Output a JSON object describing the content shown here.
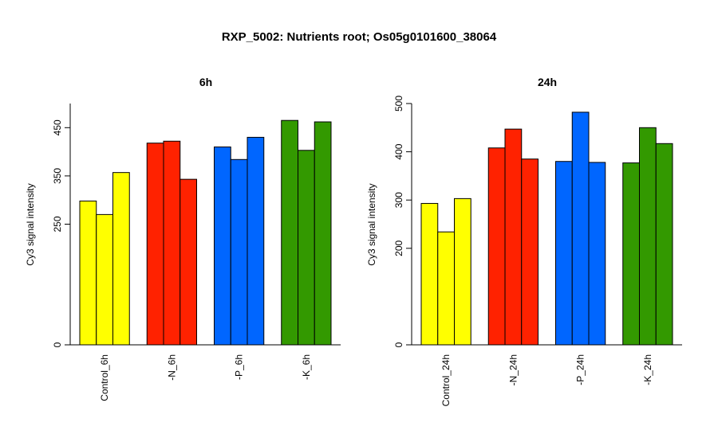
{
  "title": "RXP_5002: Nutrients root; Os05g0101600_38064",
  "chart_data": [
    {
      "type": "bar",
      "title": "6h",
      "ylabel": "Cy3 signal intensity",
      "ylim": [
        0,
        500
      ],
      "yticks": [
        0,
        250,
        350,
        450
      ],
      "groups": [
        {
          "label": "Control_6h",
          "color": "#ffff00",
          "values": [
            298,
            270,
            357
          ]
        },
        {
          "label": "-N_6h",
          "color": "#ff2200",
          "values": [
            418,
            422,
            343
          ]
        },
        {
          "label": "-P_6h",
          "color": "#0066ff",
          "values": [
            410,
            384,
            430
          ]
        },
        {
          "label": "-K_6h",
          "color": "#339900",
          "values": [
            465,
            403,
            462
          ]
        }
      ]
    },
    {
      "type": "bar",
      "title": "24h",
      "ylabel": "Cy3 signal intensity",
      "ylim": [
        0,
        500
      ],
      "yticks": [
        0,
        200,
        300,
        400,
        500
      ],
      "groups": [
        {
          "label": "Control_24h",
          "color": "#ffff00",
          "values": [
            293,
            234,
            303
          ]
        },
        {
          "label": "-N_24h",
          "color": "#ff2200",
          "values": [
            408,
            447,
            385
          ]
        },
        {
          "label": "-P_24h",
          "color": "#0066ff",
          "values": [
            380,
            482,
            378
          ]
        },
        {
          "label": "-K_24h",
          "color": "#339900",
          "values": [
            377,
            450,
            417
          ]
        }
      ]
    }
  ]
}
